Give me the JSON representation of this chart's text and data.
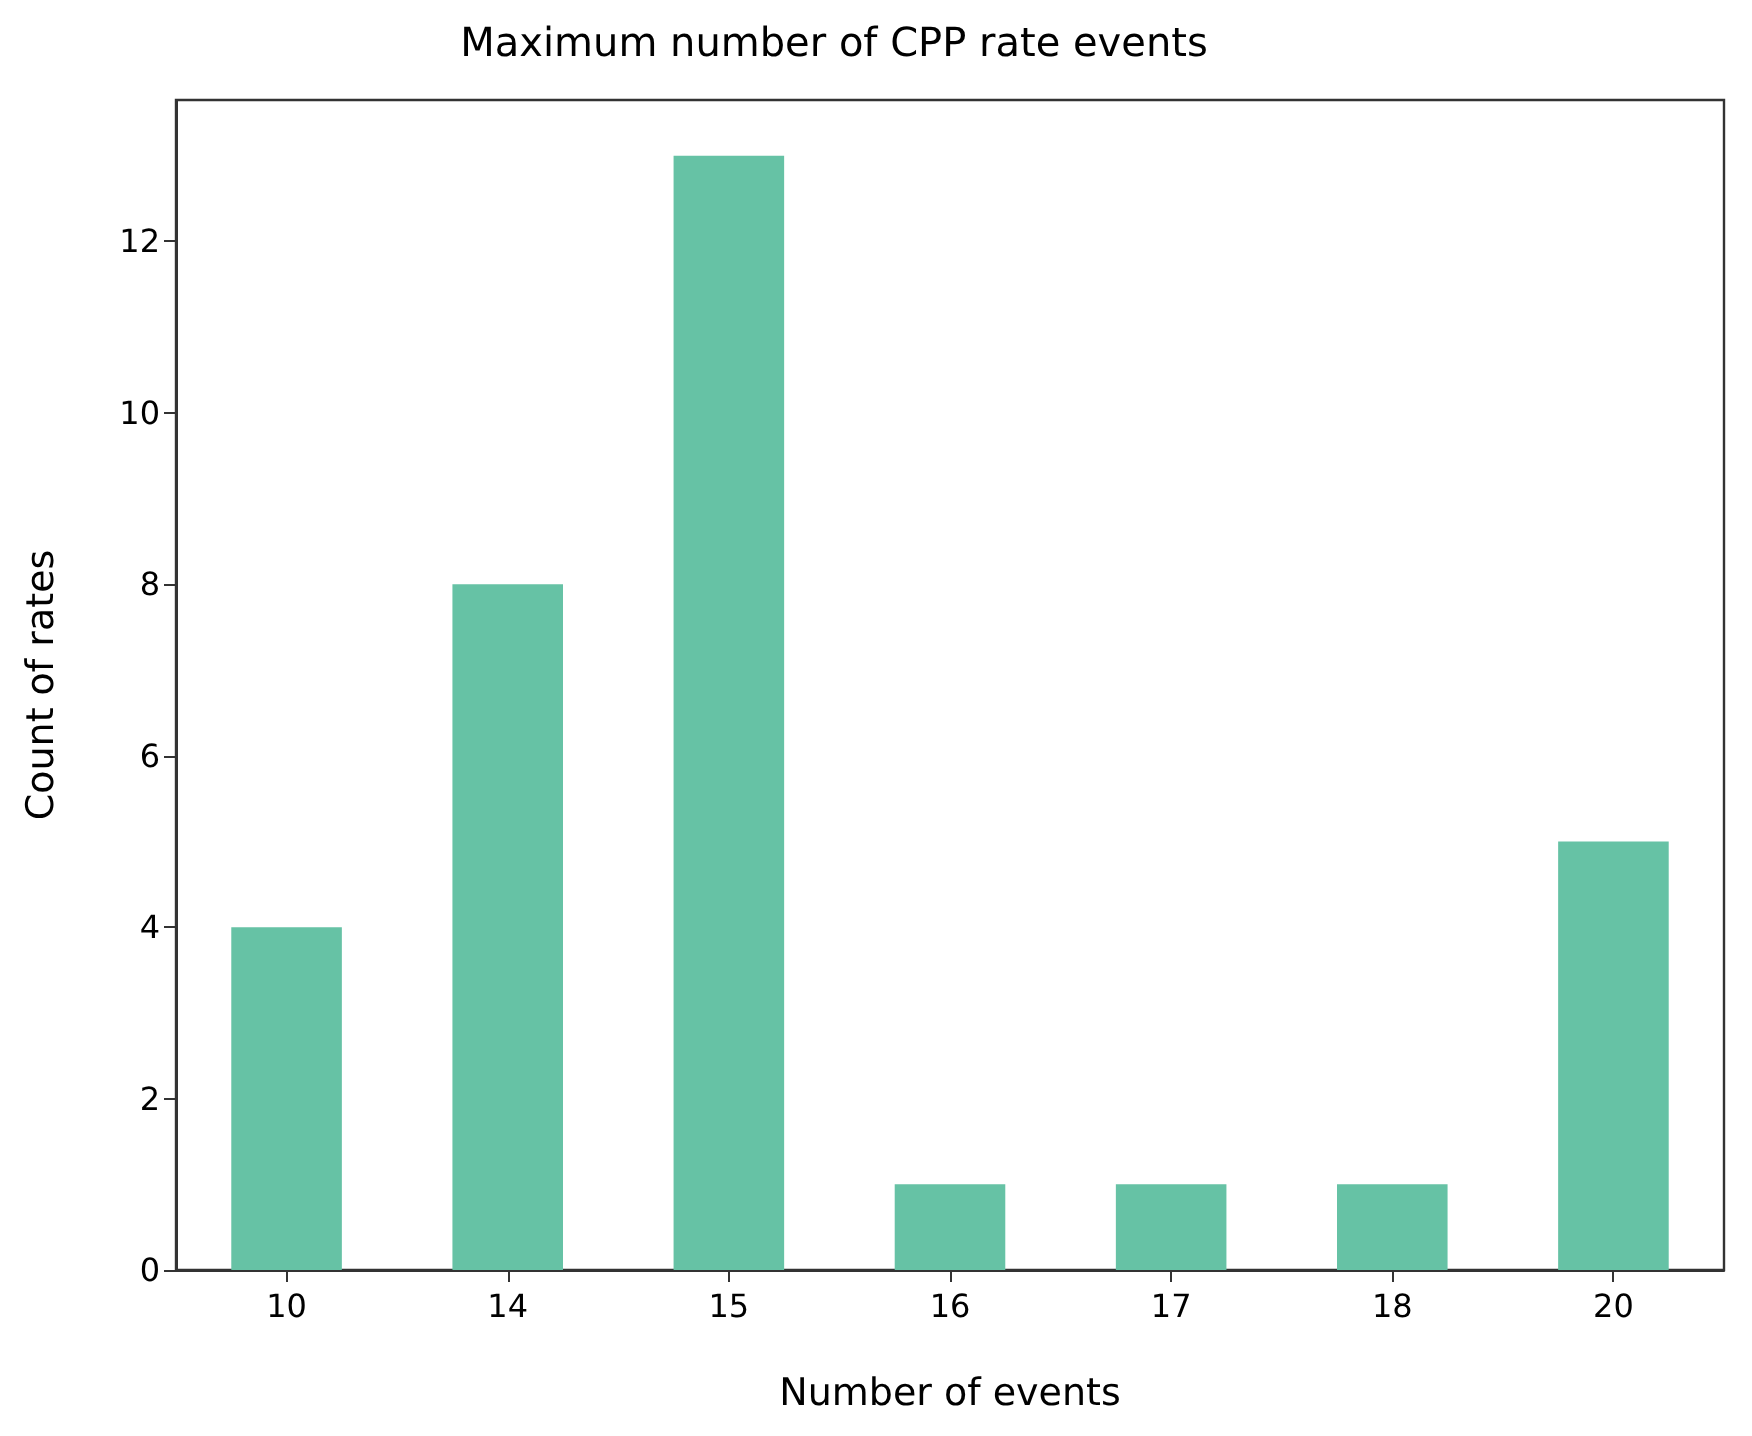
{
  "chart_data": {
    "type": "bar",
    "title": "Maximum number of CPP rate events",
    "xlabel": "Number of events",
    "ylabel": "Count of rates",
    "categories": [
      "10",
      "14",
      "15",
      "16",
      "17",
      "18",
      "20"
    ],
    "values": [
      4,
      8,
      13,
      1,
      1,
      1,
      5
    ],
    "color": "#66c2a5",
    "ylim": [
      0,
      13.65
    ],
    "yticks": [
      0,
      2,
      4,
      6,
      8,
      10,
      12
    ],
    "grid": false
  }
}
